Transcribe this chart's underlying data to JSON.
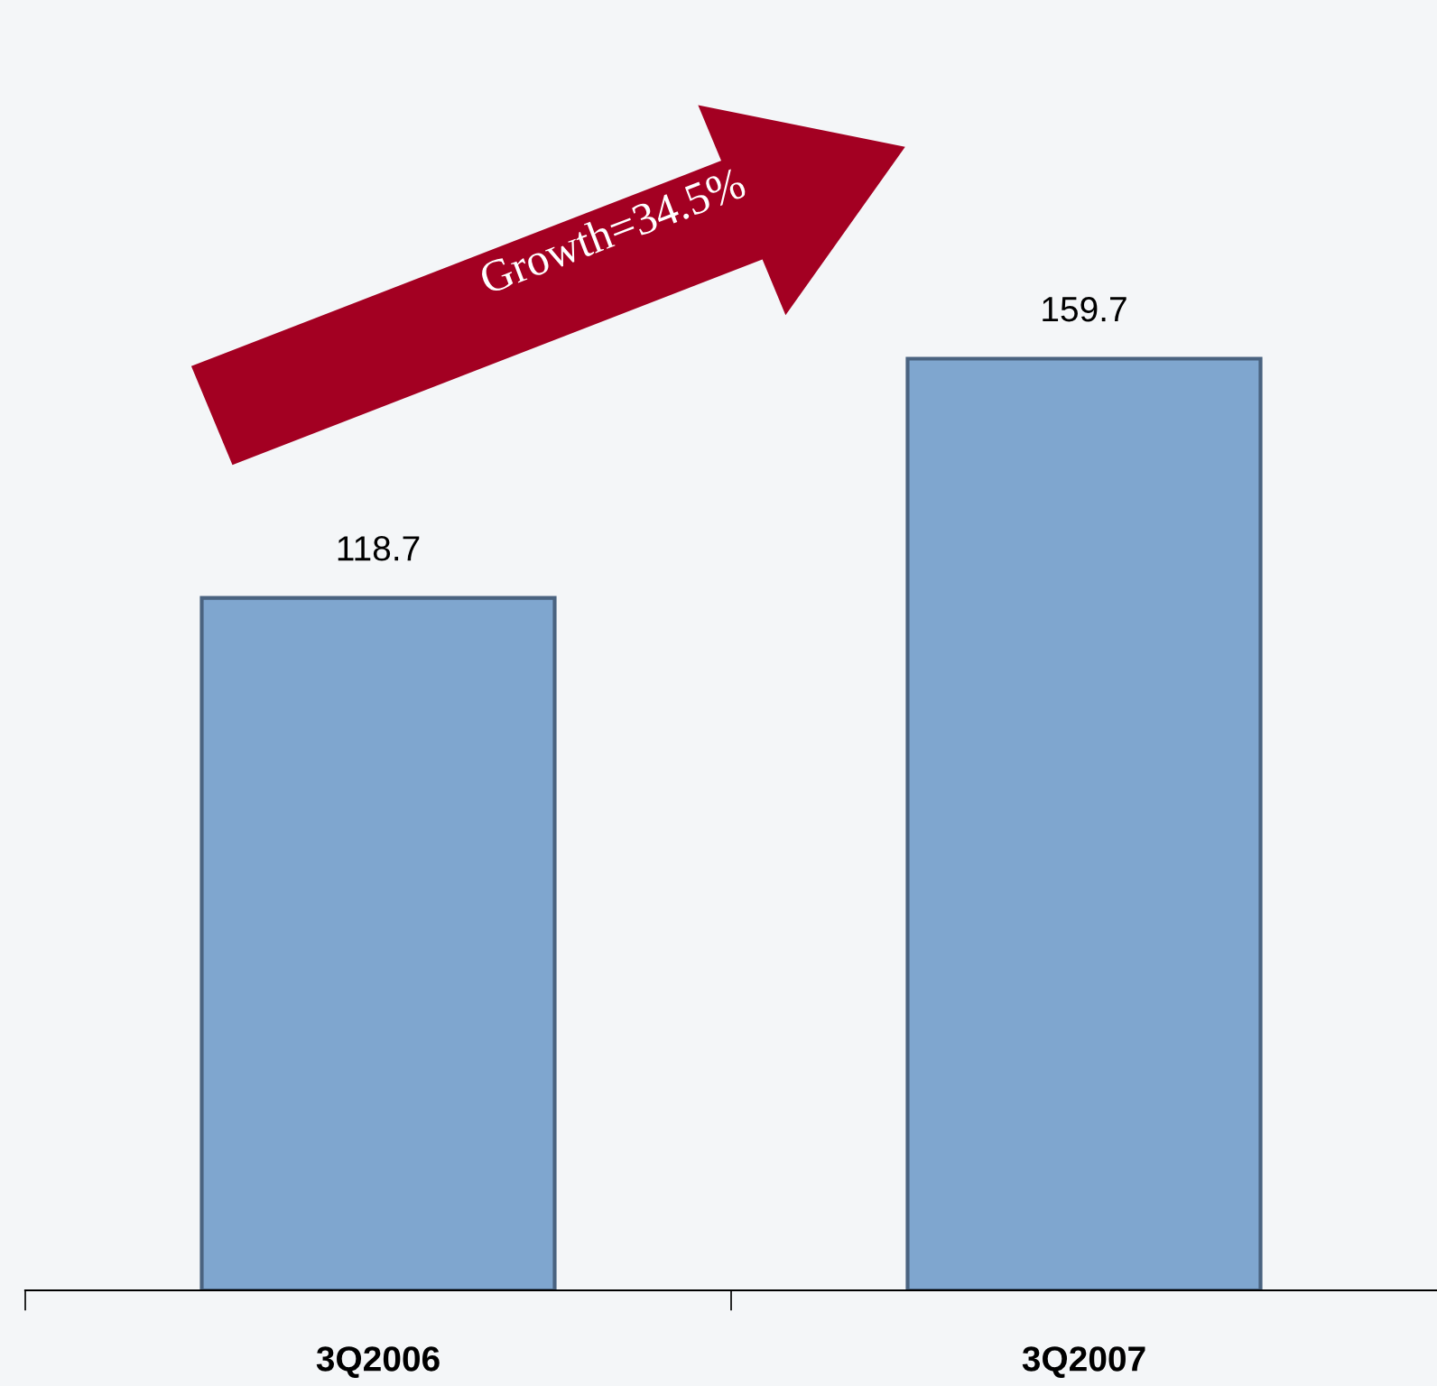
{
  "chart_data": {
    "type": "bar",
    "categories": [
      "3Q2006",
      "3Q2007"
    ],
    "values": [
      118.7,
      159.7
    ],
    "color": "#7fa6cf",
    "data_labels": true,
    "annotations": [
      "Growth=34.5%"
    ],
    "grid": false,
    "legend": false
  }
}
